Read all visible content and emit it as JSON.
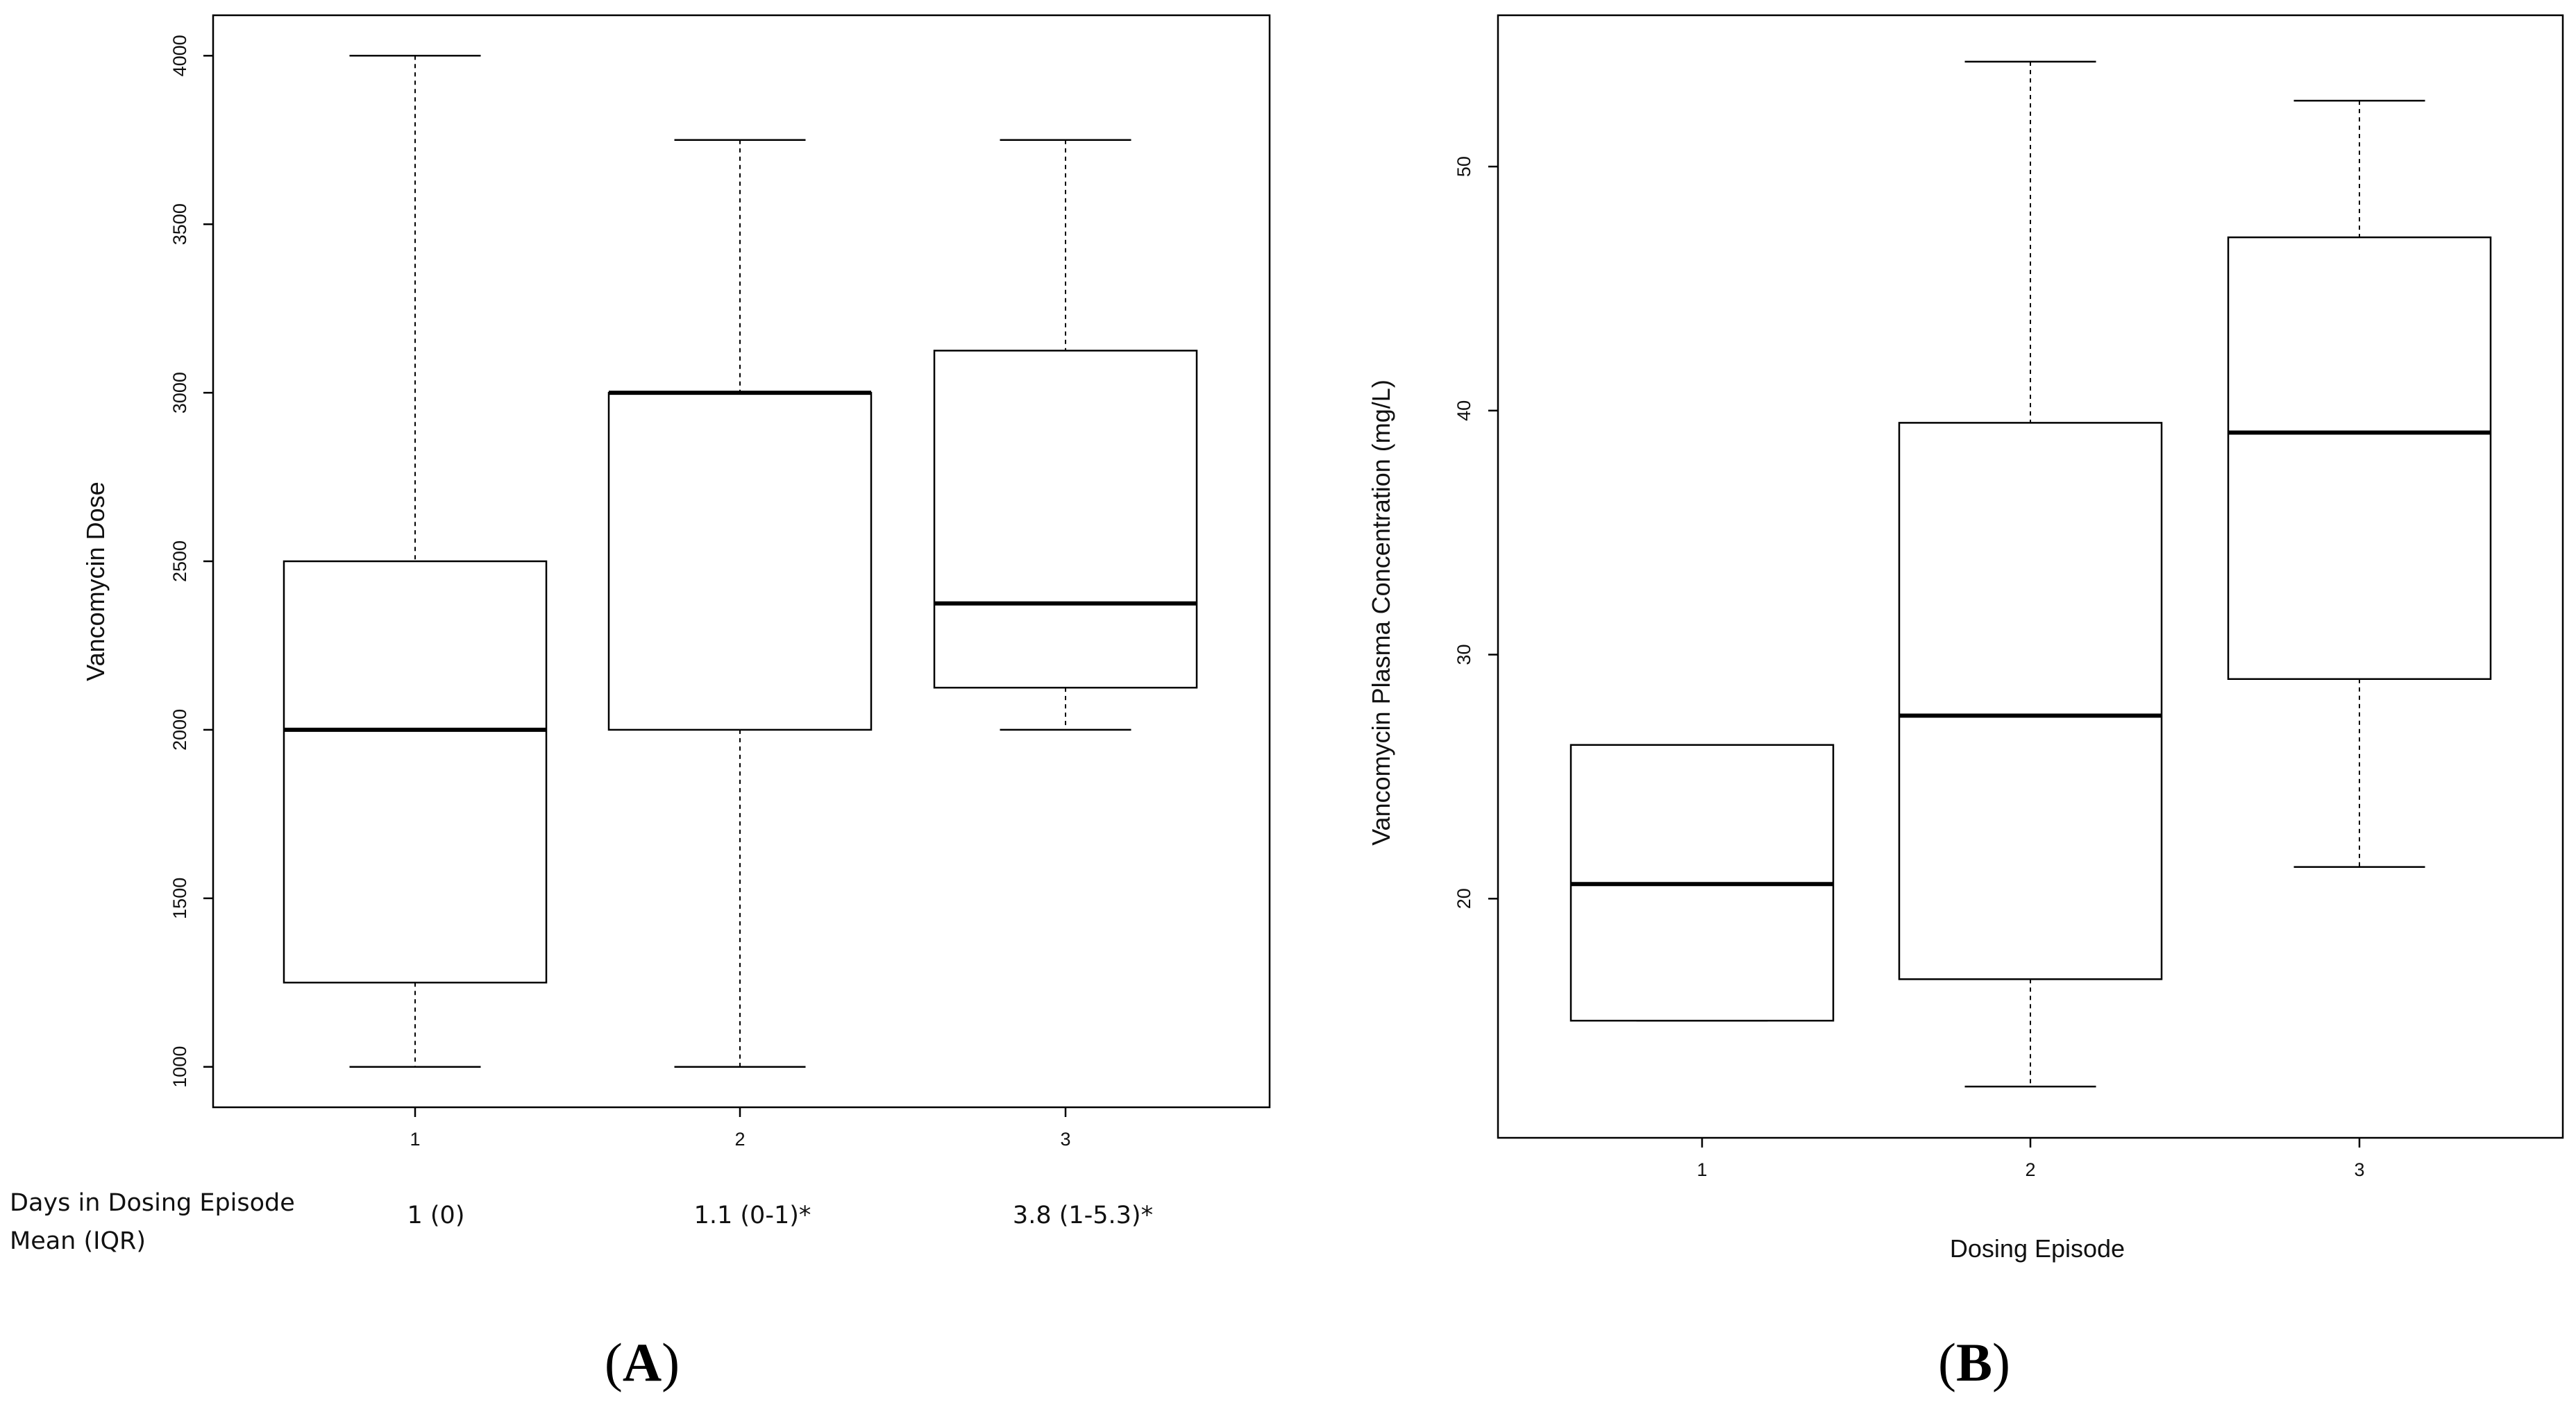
{
  "chart_data": [
    {
      "type": "box",
      "panel_label": "A",
      "title": "",
      "xlabel": "",
      "ylabel": "Vancomycin Dose",
      "ylim": [
        880,
        4120
      ],
      "yticks": [
        1000,
        1500,
        2000,
        2500,
        3000,
        3500,
        4000
      ],
      "categories": [
        "1",
        "2",
        "3"
      ],
      "boxes": [
        {
          "category": "1",
          "whisker_low": 1000,
          "q1": 1250,
          "median": 2000,
          "q3": 2500,
          "whisker_high": 4000
        },
        {
          "category": "2",
          "whisker_low": 1000,
          "q1": 2000,
          "median": 3000,
          "q3": 3000,
          "whisker_high": 3750
        },
        {
          "category": "3",
          "whisker_low": 2000,
          "q1": 2125,
          "median": 2375,
          "q3": 3125,
          "whisker_high": 3750
        }
      ],
      "row_header": [
        "Days in Dosing Episode",
        "Mean (IQR)"
      ],
      "row_values": [
        "1 (0)",
        "1.1 (0-1)*",
        "3.8 (1-5.3)*"
      ],
      "grid": false
    },
    {
      "type": "box",
      "panel_label": "B",
      "title": "",
      "xlabel": "Dosing Episode",
      "ylabel": "Vancomycin Plasma Concentration (mg/L)",
      "ylim": [
        10.2,
        56.2
      ],
      "yticks": [
        20,
        30,
        40,
        50
      ],
      "categories": [
        "1",
        "2",
        "3"
      ],
      "boxes": [
        {
          "category": "1",
          "whisker_low": 15.0,
          "q1": 15.0,
          "median": 20.6,
          "q3": 26.3,
          "whisker_high": 26.3
        },
        {
          "category": "2",
          "whisker_low": 12.3,
          "q1": 16.7,
          "median": 27.5,
          "q3": 39.5,
          "whisker_high": 54.3
        },
        {
          "category": "3",
          "whisker_low": 21.3,
          "q1": 29.0,
          "median": 39.1,
          "q3": 47.1,
          "whisker_high": 52.7
        }
      ],
      "grid": false
    }
  ]
}
